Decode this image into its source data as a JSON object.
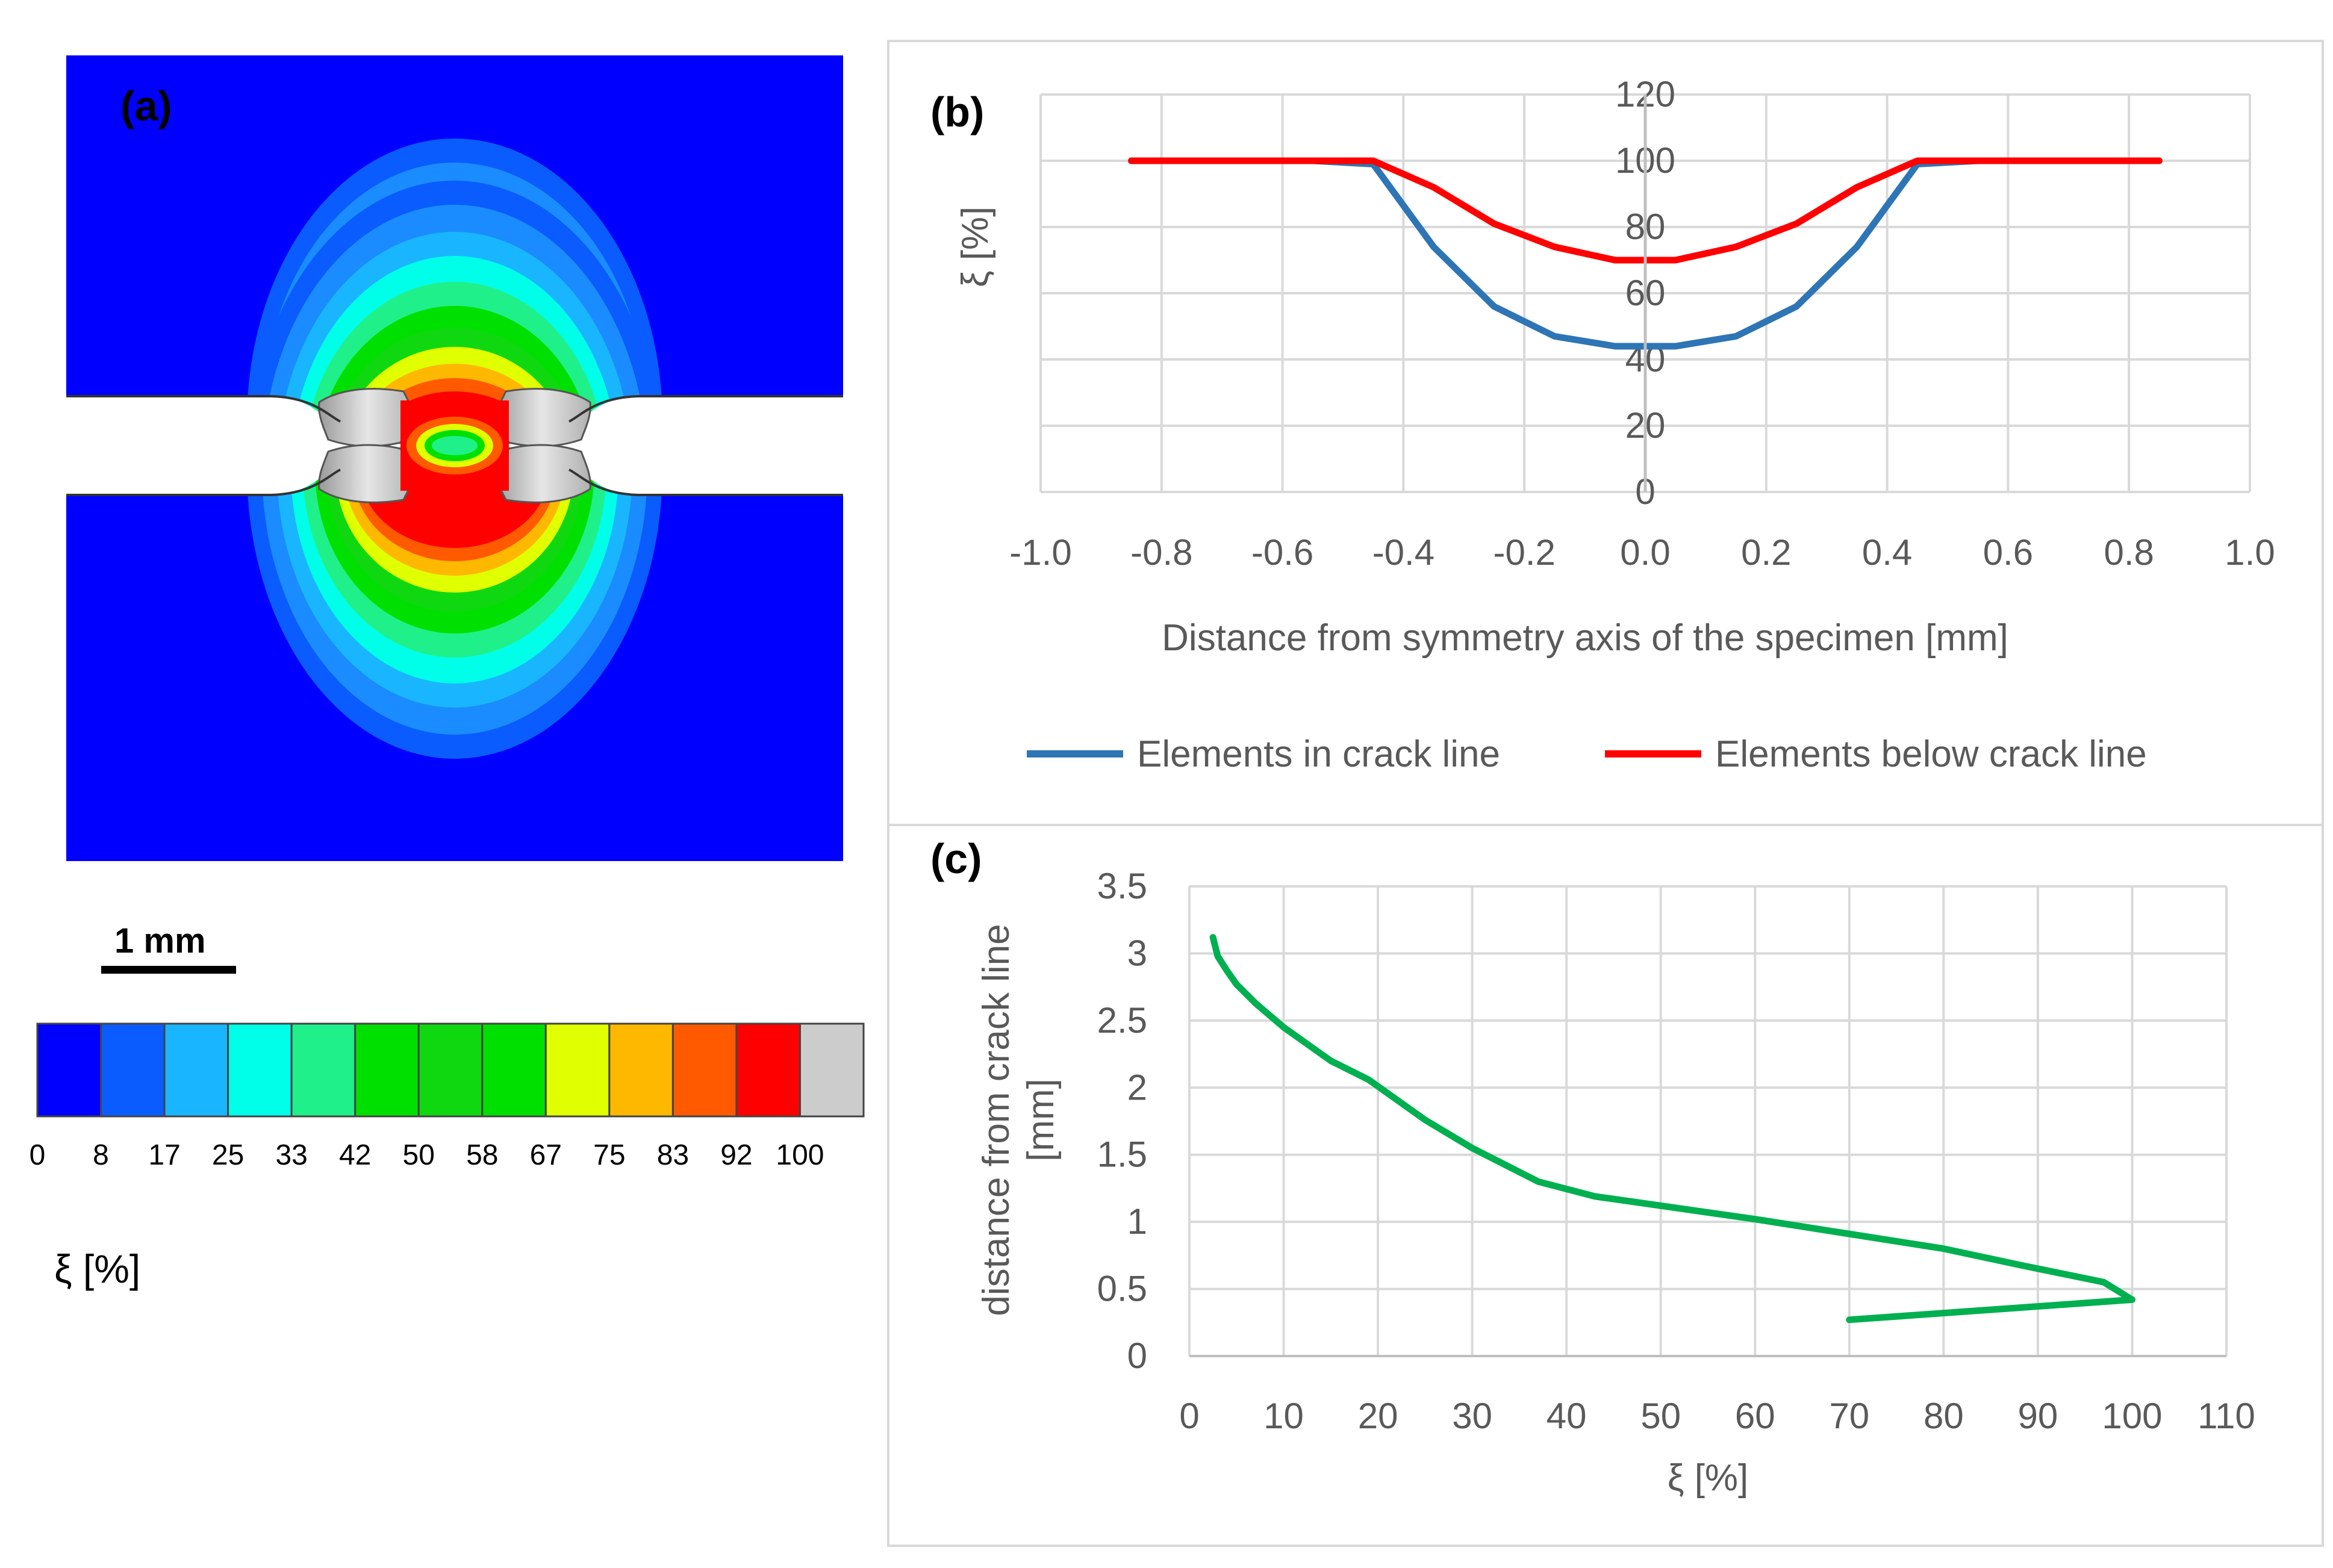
{
  "panels": {
    "a": {
      "tag": "(a)"
    },
    "b": {
      "tag": "(b)"
    },
    "c": {
      "tag": "(c)"
    }
  },
  "scale_bar": {
    "label": "1 mm"
  },
  "colorbar": {
    "ticks": [
      "0",
      "8",
      "17",
      "25",
      "33",
      "42",
      "50",
      "58",
      "67",
      "75",
      "83",
      "92",
      "100"
    ],
    "colors": [
      "#0000ff",
      "#0a5cff",
      "#19b6ff",
      "#00ffe8",
      "#20f08a",
      "#00e000",
      "#10d810",
      "#00e000",
      "#e0ff00",
      "#ffb800",
      "#ff5a00",
      "#ff0000",
      "#cccccc"
    ],
    "label": "ξ [%]"
  },
  "chart_data": [
    {
      "type": "line",
      "title": "",
      "xlabel": "Distance from symmetry axis of the specimen [mm]",
      "ylabel": "ξ [%]",
      "xlim": [
        -1.0,
        1.0
      ],
      "ylim": [
        0,
        120
      ],
      "xticks": [
        "-1.0",
        "-0.8",
        "-0.6",
        "-0.4",
        "-0.2",
        "0.0",
        "0.2",
        "0.4",
        "0.6",
        "0.8",
        "1.0"
      ],
      "yticks": [
        "0",
        "20",
        "40",
        "60",
        "80",
        "100",
        "120"
      ],
      "grid": true,
      "legend_position": "bottom",
      "series": [
        {
          "name": "Elements in crack line",
          "color": "#2e75b6",
          "x": [
            -0.85,
            -0.55,
            -0.45,
            -0.35,
            -0.25,
            -0.15,
            -0.05,
            0.05,
            0.15,
            0.25,
            0.35,
            0.45,
            0.55,
            0.85
          ],
          "y": [
            100,
            100,
            99,
            74,
            56,
            47,
            44,
            44,
            47,
            56,
            74,
            99,
            100,
            100
          ]
        },
        {
          "name": "Elements below crack line",
          "color": "#ff0000",
          "x": [
            -0.85,
            -0.55,
            -0.45,
            -0.35,
            -0.25,
            -0.15,
            -0.05,
            0.05,
            0.15,
            0.25,
            0.35,
            0.45,
            0.55,
            0.85
          ],
          "y": [
            100,
            100,
            100,
            92,
            81,
            74,
            70,
            70,
            74,
            81,
            92,
            100,
            100,
            100
          ]
        }
      ]
    },
    {
      "type": "line",
      "title": "",
      "xlabel": "ξ [%]",
      "ylabel": "distance from crack line [mm]",
      "xlim": [
        0,
        110
      ],
      "ylim": [
        0,
        3.5
      ],
      "xticks": [
        "0",
        "10",
        "20",
        "30",
        "40",
        "50",
        "60",
        "70",
        "80",
        "90",
        "100",
        "110"
      ],
      "yticks": [
        "0",
        "0.5",
        "1",
        "1.5",
        "2",
        "2.5",
        "3",
        "3.5"
      ],
      "grid": true,
      "series": [
        {
          "color": "#00b050",
          "x": [
            70,
            100,
            97,
            88,
            80,
            60,
            43,
            37,
            30,
            25,
            19,
            15,
            10,
            7,
            5,
            4,
            3,
            2.5
          ],
          "y": [
            0.27,
            0.42,
            0.55,
            0.68,
            0.8,
            1.02,
            1.19,
            1.3,
            1.55,
            1.76,
            2.06,
            2.2,
            2.45,
            2.63,
            2.77,
            2.87,
            2.98,
            3.12
          ]
        }
      ]
    }
  ]
}
